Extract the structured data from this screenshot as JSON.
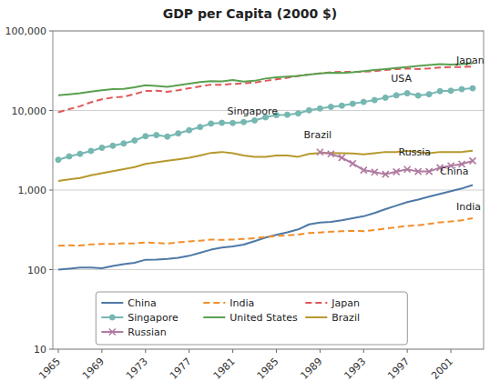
{
  "chart_data": {
    "type": "line",
    "title": "GDP per Capita (2000 $)",
    "x": [
      1965,
      1966,
      1967,
      1968,
      1969,
      1970,
      1971,
      1972,
      1973,
      1974,
      1975,
      1976,
      1977,
      1978,
      1979,
      1980,
      1981,
      1982,
      1983,
      1984,
      1985,
      1986,
      1987,
      1988,
      1989,
      1990,
      1991,
      1992,
      1993,
      1994,
      1995,
      1996,
      1997,
      1998,
      1999,
      2000,
      2001,
      2002,
      2003
    ],
    "series": [
      {
        "name": "China",
        "line_style": "solid",
        "marker": "none",
        "values": [
          100,
          103,
          106,
          106,
          104,
          111,
          117,
          122,
          133,
          134,
          136,
          141,
          149,
          163,
          178,
          189,
          196,
          206,
          228,
          253,
          273,
          294,
          320,
          370,
          390,
          398,
          418,
          443,
          468,
          515,
          575,
          637,
          706,
          760,
          825,
          895,
          970,
          1045,
          1155
        ]
      },
      {
        "name": "India",
        "line_style": "dashed",
        "marker": "none",
        "values": [
          200,
          202,
          201,
          207,
          210,
          210,
          214,
          213,
          220,
          216,
          212,
          220,
          226,
          231,
          239,
          236,
          239,
          243,
          248,
          257,
          264,
          270,
          276,
          289,
          293,
          300,
          303,
          307,
          304,
          314,
          328,
          341,
          354,
          360,
          376,
          393,
          403,
          418,
          443
        ]
      },
      {
        "name": "Japan",
        "line_style": "dashed",
        "marker": "none",
        "values": [
          9500,
          10400,
          11300,
          12700,
          13800,
          14600,
          14900,
          16100,
          17600,
          17700,
          17200,
          18000,
          19000,
          20100,
          21100,
          21000,
          21600,
          21900,
          22400,
          23600,
          24600,
          25700,
          27200,
          28300,
          29300,
          30300,
          30700,
          30600,
          30700,
          31100,
          32200,
          33200,
          33700,
          33100,
          33700,
          34700,
          35200,
          35200,
          35800
        ]
      },
      {
        "name": "Singapore",
        "line_style": "solid",
        "marker": "circle",
        "values": [
          2400,
          2650,
          2850,
          3100,
          3400,
          3600,
          3850,
          4200,
          4750,
          4900,
          4700,
          5150,
          5650,
          6200,
          6850,
          7000,
          6950,
          7150,
          7500,
          8200,
          8750,
          8850,
          9200,
          10050,
          10600,
          11100,
          11500,
          12150,
          12800,
          13500,
          14500,
          15500,
          16450,
          15400,
          16000,
          17500,
          17700,
          18500,
          19000
        ]
      },
      {
        "name": "United States",
        "line_style": "solid",
        "marker": "none",
        "values": [
          15500,
          16000,
          16500,
          17300,
          18000,
          18600,
          18700,
          19600,
          20700,
          20400,
          19800,
          20700,
          21700,
          22700,
          23300,
          23200,
          24100,
          23100,
          23600,
          25200,
          26200,
          26700,
          27200,
          28300,
          29300,
          29800,
          29700,
          30200,
          31200,
          32200,
          33200,
          34200,
          35200,
          36200,
          37300,
          38300,
          37800,
          38300,
          39300
        ]
      },
      {
        "name": "Brazil",
        "line_style": "solid",
        "marker": "none",
        "values": [
          1300,
          1360,
          1420,
          1530,
          1630,
          1730,
          1830,
          1940,
          2130,
          2230,
          2340,
          2430,
          2540,
          2720,
          2930,
          3010,
          2910,
          2720,
          2620,
          2620,
          2720,
          2720,
          2620,
          2840,
          2930,
          2920,
          2900,
          2890,
          2810,
          2910,
          3010,
          3010,
          3110,
          3010,
          2910,
          3010,
          3010,
          3010,
          3120
        ]
      },
      {
        "name": "Russian",
        "line_style": "solid",
        "marker": "x",
        "values": [
          null,
          null,
          null,
          null,
          null,
          null,
          null,
          null,
          null,
          null,
          null,
          null,
          null,
          null,
          null,
          null,
          null,
          null,
          null,
          null,
          null,
          null,
          null,
          null,
          3000,
          2850,
          2550,
          2150,
          1780,
          1680,
          1580,
          1700,
          1820,
          1710,
          1710,
          1910,
          2020,
          2120,
          2330
        ]
      }
    ],
    "log": "y",
    "xlim": [
      1964.5,
      2004
    ],
    "xticks": [
      1965,
      1969,
      1973,
      1977,
      1981,
      1985,
      1989,
      1993,
      1997,
      2001
    ],
    "ylim": [
      10,
      100000
    ],
    "yticks": [
      10,
      100,
      {
        "value": 1000,
        "label": "1,000"
      },
      {
        "value": 10000,
        "label": "10,000"
      },
      {
        "value": 100000,
        "label": "100,000"
      }
    ],
    "grid": true,
    "legend": "lower left",
    "annotations": [
      {
        "x": 2001.5,
        "y": 37000,
        "text": "Japan"
      },
      {
        "x": 1995.5,
        "y": 21500,
        "text": "USA"
      },
      {
        "x": 1980.5,
        "y": 8500,
        "text": "Singapore"
      },
      {
        "x": 1987.5,
        "y": 4200,
        "text": "Brazil"
      },
      {
        "x": 1996.2,
        "y": 2550,
        "text": "Russia"
      },
      {
        "x": 2000.0,
        "y": 1500,
        "text": "China"
      },
      {
        "x": 2001.5,
        "y": 530,
        "text": "India"
      }
    ]
  }
}
